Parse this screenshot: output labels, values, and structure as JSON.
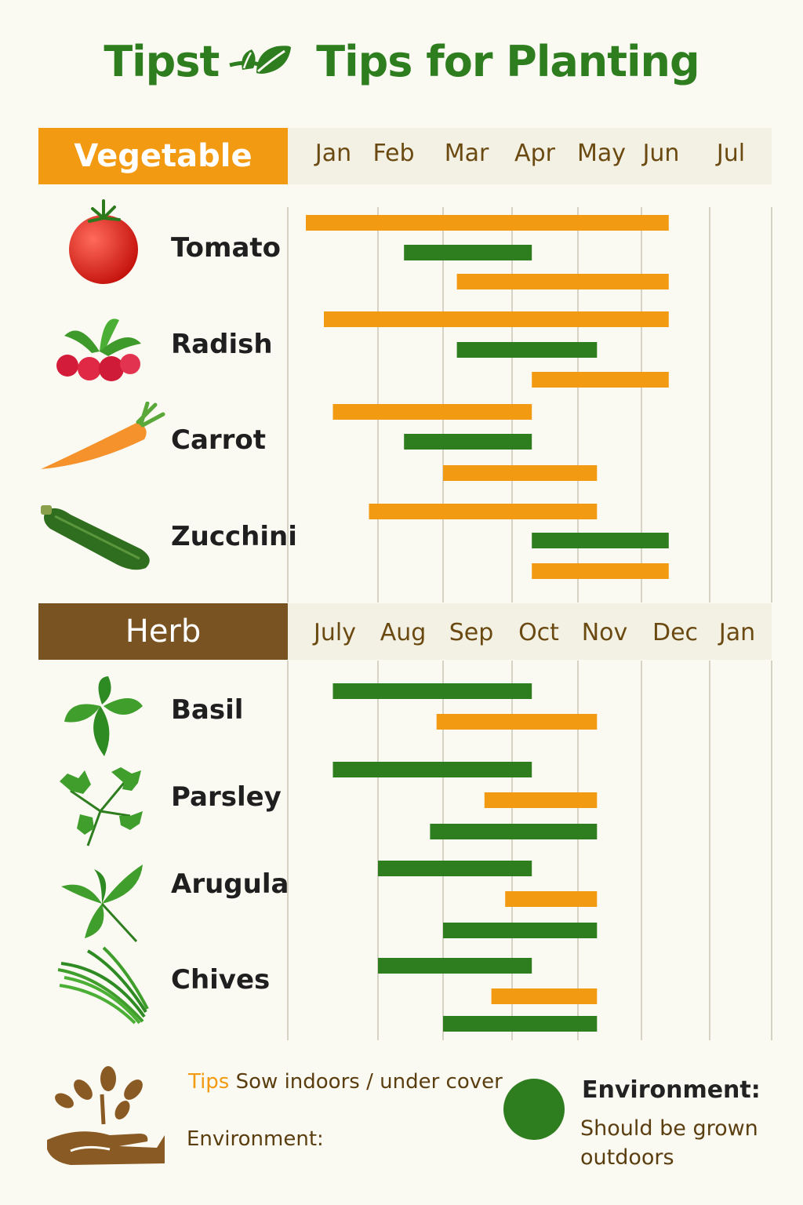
{
  "title": {
    "prefix": "Tipst",
    "main": "Tips for Planting"
  },
  "colors": {
    "indoors": "#f29a12",
    "outdoors": "#2e7d1f",
    "herb_header": "#7a5322",
    "title": "#2e7d1f"
  },
  "legend": {
    "tips_word": "Tips",
    "tips_text": " Sow indoors / under cover",
    "env_left": "Environment:",
    "env_title": "Environment:",
    "env_desc": "Should be grown outdoors"
  },
  "chart_data": [
    {
      "type": "bar",
      "subtype": "gantt",
      "section": "Vegetable",
      "months": [
        "Jan",
        "Feb",
        "Mar",
        "Apr",
        "May",
        "Jun",
        "Jul"
      ],
      "units": "month index (0 = Jan)",
      "series": [
        {
          "name": "Sow indoors / under cover",
          "color": "#f29a12"
        },
        {
          "name": "Should be grown outdoors",
          "color": "#2e7d1f"
        }
      ],
      "plants": [
        {
          "name": "Tomato",
          "icon": "tomato-icon",
          "bars": [
            {
              "start": 0.2,
              "end": 5.4,
              "series": 0
            },
            {
              "start": 1.4,
              "end": 3.3,
              "series": 1
            },
            {
              "start": 2.2,
              "end": 5.4,
              "series": 0
            }
          ]
        },
        {
          "name": "Radish",
          "icon": "radish-icon",
          "bars": [
            {
              "start": 0.4,
              "end": 5.4,
              "series": 0
            },
            {
              "start": 2.2,
              "end": 4.3,
              "series": 1
            },
            {
              "start": 3.3,
              "end": 5.4,
              "series": 0
            }
          ]
        },
        {
          "name": "Carrot",
          "icon": "carrot-icon",
          "bars": [
            {
              "start": 0.5,
              "end": 3.3,
              "series": 0
            },
            {
              "start": 1.4,
              "end": 3.3,
              "series": 1
            },
            {
              "start": 2.0,
              "end": 4.3,
              "series": 0
            }
          ]
        },
        {
          "name": "Zucchini",
          "icon": "zucchini-icon",
          "bars": [
            {
              "start": 0.9,
              "end": 4.3,
              "series": 0
            },
            {
              "start": 3.3,
              "end": 5.4,
              "series": 1
            },
            {
              "start": 3.3,
              "end": 5.4,
              "series": 0
            }
          ]
        }
      ]
    },
    {
      "type": "bar",
      "subtype": "gantt",
      "section": "Herb",
      "months": [
        "July",
        "Aug",
        "Sep",
        "Oct",
        "Nov",
        "Dec",
        "Jan"
      ],
      "units": "month index (0 = July)",
      "series": [
        {
          "name": "Sow indoors / under cover",
          "color": "#f29a12"
        },
        {
          "name": "Should be grown outdoors",
          "color": "#2e7d1f"
        }
      ],
      "plants": [
        {
          "name": "Basil",
          "icon": "basil-icon",
          "bars": [
            {
              "start": 0.5,
              "end": 3.3,
              "series": 1
            },
            {
              "start": 1.9,
              "end": 4.3,
              "series": 0
            }
          ]
        },
        {
          "name": "Parsley",
          "icon": "parsley-icon",
          "bars": [
            {
              "start": 0.5,
              "end": 3.3,
              "series": 1
            },
            {
              "start": 2.6,
              "end": 4.3,
              "series": 0
            },
            {
              "start": 1.8,
              "end": 4.3,
              "series": 1
            }
          ]
        },
        {
          "name": "Arugula",
          "icon": "arugula-icon",
          "bars": [
            {
              "start": 1.0,
              "end": 3.3,
              "series": 1
            },
            {
              "start": 2.9,
              "end": 4.3,
              "series": 0
            },
            {
              "start": 2.0,
              "end": 4.3,
              "series": 1
            }
          ]
        },
        {
          "name": "Chives",
          "icon": "chives-icon",
          "bars": [
            {
              "start": 1.0,
              "end": 3.3,
              "series": 1
            },
            {
              "start": 2.7,
              "end": 4.3,
              "series": 0
            },
            {
              "start": 2.0,
              "end": 4.3,
              "series": 1
            }
          ]
        }
      ]
    }
  ]
}
